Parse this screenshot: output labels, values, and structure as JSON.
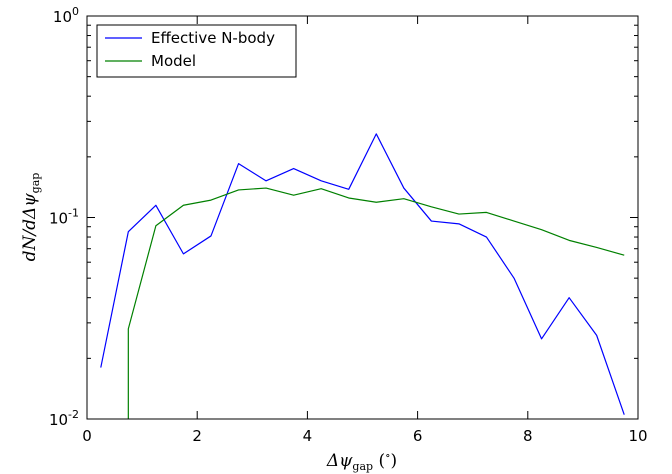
{
  "chart_data": {
    "type": "line",
    "xlabel": "Δψgap (°)",
    "ylabel": "dN/dΔψgap",
    "xlim": [
      0,
      10
    ],
    "ylim": [
      0.01,
      1
    ],
    "yscale": "log",
    "grid": false,
    "legend_position": "top-left",
    "x_ticks": [
      0,
      2,
      4,
      6,
      8,
      10
    ],
    "x_tick_labels": [
      "0",
      "2",
      "4",
      "6",
      "8",
      "10"
    ],
    "y_ticks": [
      1,
      0.1,
      0.01
    ],
    "y_tick_labels": [
      {
        "base": "10",
        "exp": "0"
      },
      {
        "base": "10",
        "exp": "-1"
      },
      {
        "base": "10",
        "exp": "-2"
      }
    ],
    "series": [
      {
        "name": "Effective N-body",
        "color": "#0000ff",
        "x": [
          0.25,
          0.75,
          1.25,
          1.75,
          2.25,
          2.75,
          3.25,
          3.75,
          4.25,
          4.75,
          5.25,
          5.75,
          6.25,
          6.75,
          7.25,
          7.75,
          8.25,
          8.75,
          9.25,
          9.75
        ],
        "y": [
          0.018,
          0.085,
          0.115,
          0.066,
          0.081,
          0.185,
          0.152,
          0.175,
          0.152,
          0.138,
          0.26,
          0.14,
          0.096,
          0.093,
          0.08,
          0.05,
          0.025,
          0.04,
          0.026,
          0.0105
        ]
      },
      {
        "name": "Model",
        "color": "#008000",
        "x": [
          0.75,
          0.75,
          1.25,
          1.75,
          2.25,
          2.75,
          3.25,
          3.75,
          4.25,
          4.75,
          5.25,
          5.75,
          6.25,
          6.75,
          7.25,
          7.75,
          8.25,
          8.75,
          9.25,
          9.75
        ],
        "y": [
          0.01,
          0.028,
          0.091,
          0.115,
          0.122,
          0.137,
          0.14,
          0.129,
          0.139,
          0.125,
          0.119,
          0.124,
          0.113,
          0.104,
          0.106,
          0.096,
          0.087,
          0.077,
          0.071,
          0.065
        ]
      }
    ]
  }
}
